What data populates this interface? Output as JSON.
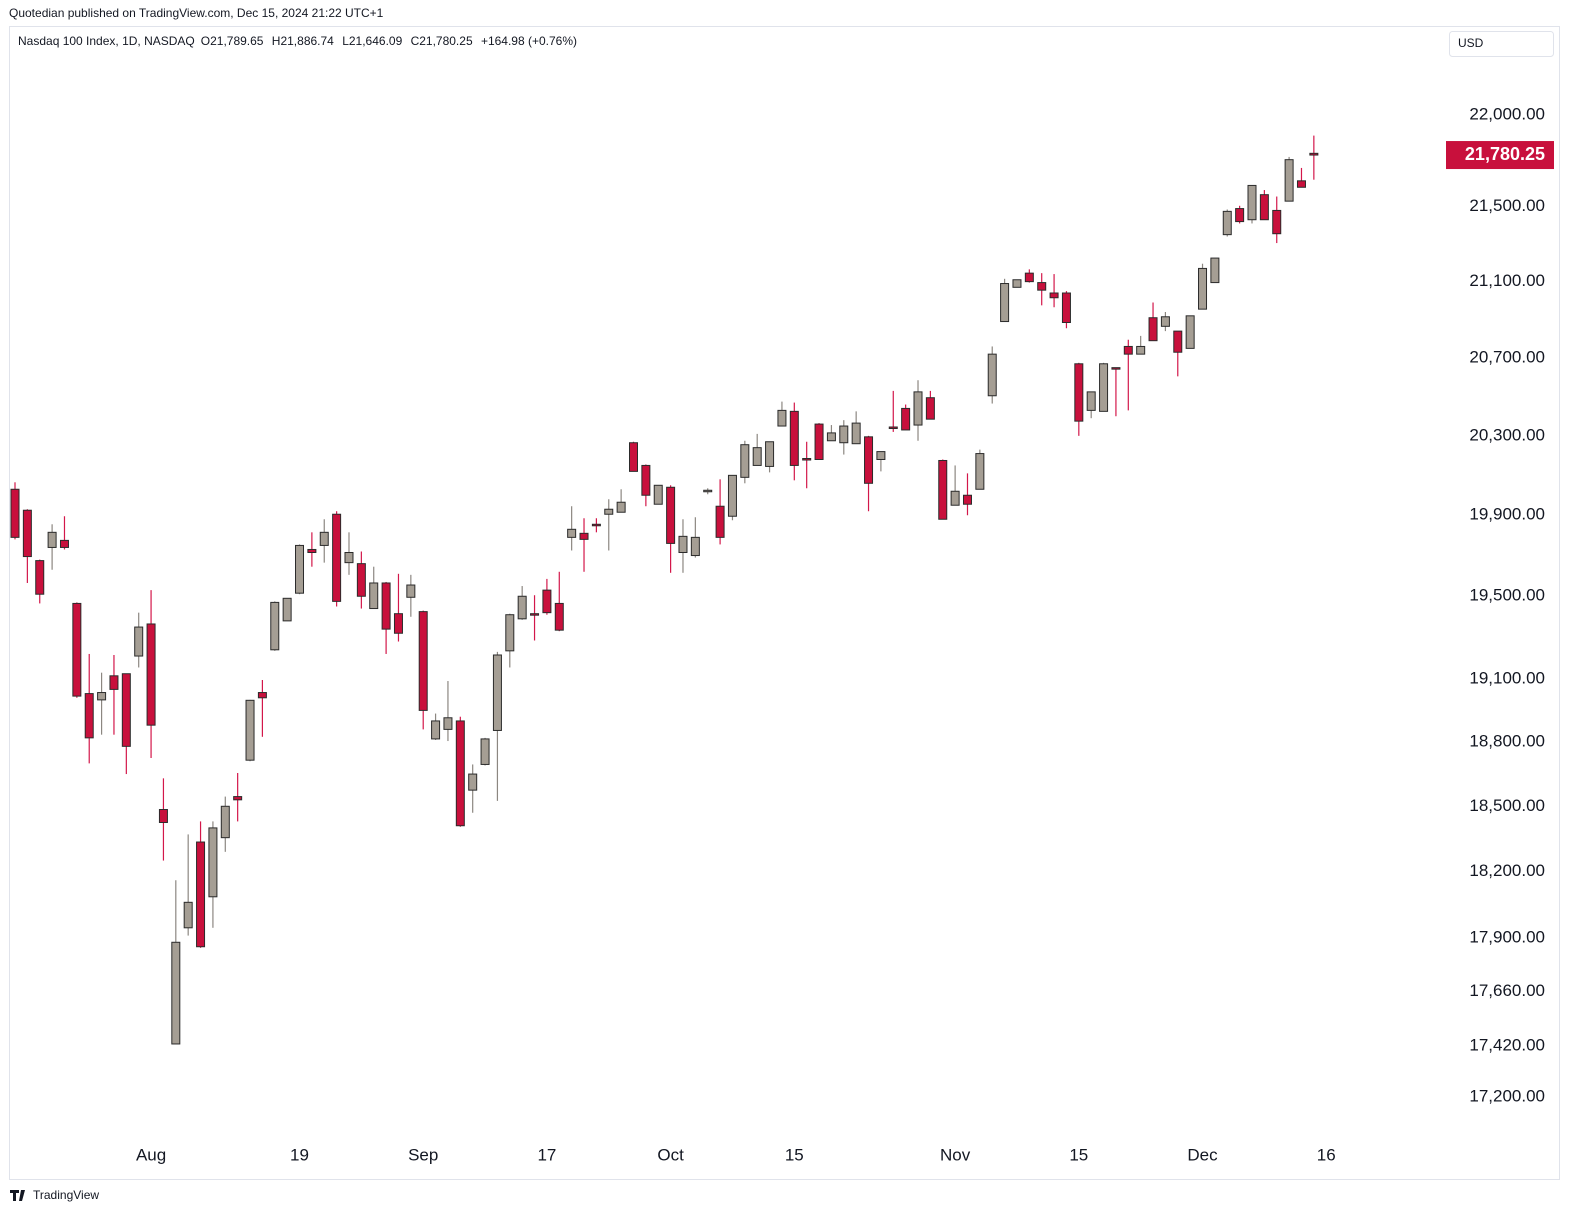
{
  "header": {
    "publisher": "Quotedian published on TradingView.com, Dec 15, 2024 21:22 UTC+1"
  },
  "footer": {
    "brand": "TradingView"
  },
  "chart_data": {
    "type": "candlestick",
    "symbol": "Nasdaq 100 Index, 1D, NASDAQ",
    "ohlc_legend": [
      "O21,789.65",
      "H21,886.74",
      "L21,646.09",
      "C21,780.25",
      "+164.98 (+0.76%)"
    ],
    "currency": "USD",
    "log_scale": true,
    "up_color": "#a59e94",
    "down_color": "#c8103c",
    "border_color": "#2b2b2b",
    "up_wick_color": "#8c8781",
    "down_wick_color": "#d3174a",
    "last_price": {
      "value": 21780.25,
      "label": "21,780.25"
    },
    "ylim": [
      17024,
      22485
    ],
    "yticks": [
      {
        "value": 22000,
        "label": "22,000.00"
      },
      {
        "value": 21500,
        "label": "21,500.00"
      },
      {
        "value": 21100,
        "label": "21,100.00"
      },
      {
        "value": 20700,
        "label": "20,700.00"
      },
      {
        "value": 20300,
        "label": "20,300.00"
      },
      {
        "value": 19900,
        "label": "19,900.00"
      },
      {
        "value": 19500,
        "label": "19,500.00"
      },
      {
        "value": 19100,
        "label": "19,100.00"
      },
      {
        "value": 18800,
        "label": "18,800.00"
      },
      {
        "value": 18500,
        "label": "18,500.00"
      },
      {
        "value": 18200,
        "label": "18,200.00"
      },
      {
        "value": 17900,
        "label": "17,900.00"
      },
      {
        "value": 17660,
        "label": "17,660.00"
      },
      {
        "value": 17420,
        "label": "17,420.00"
      },
      {
        "value": 17200,
        "label": "17,200.00"
      }
    ],
    "categories": [
      null,
      null,
      null,
      null,
      null,
      null,
      null,
      null,
      null,
      null,
      null,
      "Aug",
      null,
      null,
      null,
      null,
      null,
      null,
      null,
      null,
      null,
      null,
      null,
      "19",
      null,
      null,
      null,
      null,
      null,
      null,
      null,
      null,
      null,
      "Sep",
      null,
      null,
      null,
      null,
      null,
      null,
      null,
      null,
      null,
      "17",
      null,
      null,
      null,
      null,
      null,
      null,
      null,
      null,
      null,
      "Oct",
      null,
      null,
      null,
      null,
      null,
      null,
      null,
      null,
      null,
      "15",
      null,
      null,
      null,
      null,
      null,
      null,
      null,
      null,
      null,
      null,
      null,
      null,
      "Nov",
      null,
      null,
      null,
      null,
      null,
      null,
      null,
      null,
      null,
      "15",
      null,
      null,
      null,
      null,
      null,
      null,
      null,
      null,
      null,
      "Dec",
      null,
      null,
      null,
      null,
      null,
      null,
      null,
      null,
      null,
      "16"
    ],
    "open": [
      20030,
      19925,
      19675,
      19740,
      19775,
      19465,
      19030,
      19000,
      19115,
      19125,
      19210,
      19365,
      18485,
      17430,
      17945,
      18335,
      18085,
      18355,
      18545,
      18715,
      19035,
      19240,
      19380,
      19515,
      19730,
      19750,
      19905,
      19665,
      19660,
      19440,
      19565,
      19415,
      19495,
      19425,
      18815,
      18860,
      18900,
      18575,
      18695,
      18855,
      19235,
      19390,
      19415,
      19530,
      19465,
      19790,
      19810,
      19855,
      19905,
      19915,
      20265,
      20150,
      19955,
      20040,
      19715,
      19700,
      20020,
      19945,
      19895,
      20090,
      20150,
      20145,
      20350,
      20425,
      20185,
      20360,
      20275,
      20265,
      20260,
      20295,
      20180,
      20345,
      20440,
      20355,
      20495,
      20175,
      19950,
      20000,
      20030,
      20505,
      20890,
      21070,
      21145,
      21095,
      21040,
      21040,
      20670,
      20430,
      20425,
      20650,
      20760,
      20720,
      20910,
      20865,
      20840,
      20750,
      20955,
      21095,
      21350,
      21490,
      21430,
      21565,
      21480,
      21530,
      21640,
      21789.65,
      null
    ],
    "high": [
      20065,
      19930,
      19680,
      19855,
      19895,
      19470,
      19220,
      19130,
      19215,
      19125,
      19420,
      19530,
      18630,
      18160,
      18370,
      18430,
      18430,
      18545,
      18655,
      19000,
      19095,
      19475,
      19490,
      19755,
      19815,
      19880,
      19920,
      19815,
      19720,
      19645,
      19570,
      19610,
      19605,
      19430,
      18935,
      19090,
      18920,
      18695,
      18820,
      19230,
      19415,
      19550,
      19505,
      19585,
      19620,
      19945,
      19885,
      19885,
      19980,
      20030,
      20270,
      20155,
      20050,
      20050,
      19880,
      19890,
      20035,
      20080,
      20100,
      20275,
      20310,
      20270,
      20475,
      20470,
      20270,
      20365,
      20355,
      20380,
      20425,
      20300,
      20220,
      20530,
      20460,
      20585,
      20530,
      20180,
      20150,
      20110,
      20230,
      20760,
      21115,
      21110,
      21165,
      21145,
      21140,
      21050,
      20675,
      20525,
      20675,
      20650,
      20795,
      20815,
      20990,
      20940,
      20840,
      20920,
      21195,
      21225,
      21485,
      21505,
      21615,
      21590,
      21555,
      21770,
      21710,
      21886.74,
      null
    ],
    "low": [
      19780,
      19565,
      19465,
      19630,
      19730,
      19010,
      18700,
      18835,
      18835,
      18650,
      19155,
      18725,
      18250,
      17430,
      17910,
      17855,
      17945,
      18290,
      18430,
      18710,
      18825,
      19235,
      19380,
      19510,
      19645,
      19665,
      19450,
      19605,
      19440,
      19440,
      19220,
      19280,
      19400,
      18860,
      18810,
      18805,
      18405,
      18470,
      18690,
      18525,
      19155,
      19385,
      19285,
      19410,
      19330,
      19725,
      19620,
      19815,
      19725,
      19915,
      20120,
      19945,
      19955,
      19615,
      19615,
      19690,
      20005,
      19755,
      19875,
      20060,
      20150,
      20115,
      20350,
      20075,
      20035,
      20180,
      20275,
      20205,
      20260,
      19920,
      20120,
      20320,
      20330,
      20275,
      20385,
      19880,
      19950,
      19900,
      20030,
      20465,
      20890,
      21070,
      21095,
      20975,
      20965,
      20855,
      20300,
      20390,
      20425,
      20400,
      20430,
      20720,
      20790,
      20840,
      20605,
      20750,
      20955,
      21095,
      21340,
      21410,
      21410,
      21430,
      21305,
      21530,
      21605,
      21646.09,
      null
    ],
    "close": [
      19790,
      19695,
      19510,
      19815,
      19740,
      19018,
      18820,
      19035,
      19050,
      18780,
      19350,
      18880,
      18425,
      17880,
      18060,
      17860,
      18400,
      18500,
      18530,
      18998,
      19010,
      19470,
      19490,
      19750,
      19715,
      19815,
      19475,
      19715,
      19500,
      19565,
      19340,
      19320,
      19555,
      18950,
      18900,
      18915,
      18410,
      18650,
      18815,
      19215,
      19410,
      19500,
      19410,
      19420,
      19335,
      19830,
      19780,
      19850,
      19930,
      19965,
      20120,
      20000,
      20050,
      19760,
      19795,
      19790,
      20025,
      19790,
      20100,
      20255,
      20240,
      20270,
      20430,
      20150,
      20180,
      20180,
      20315,
      20350,
      20365,
      20060,
      20220,
      20340,
      20330,
      20525,
      20385,
      19880,
      20020,
      19955,
      20210,
      20720,
      21090,
      21110,
      21100,
      21055,
      21015,
      20885,
      20375,
      20525,
      20670,
      20645,
      20720,
      20760,
      20790,
      20915,
      20730,
      20920,
      21170,
      21225,
      21475,
      21420,
      21615,
      21430,
      21355,
      21755,
      21605,
      21780.25,
      null
    ]
  }
}
